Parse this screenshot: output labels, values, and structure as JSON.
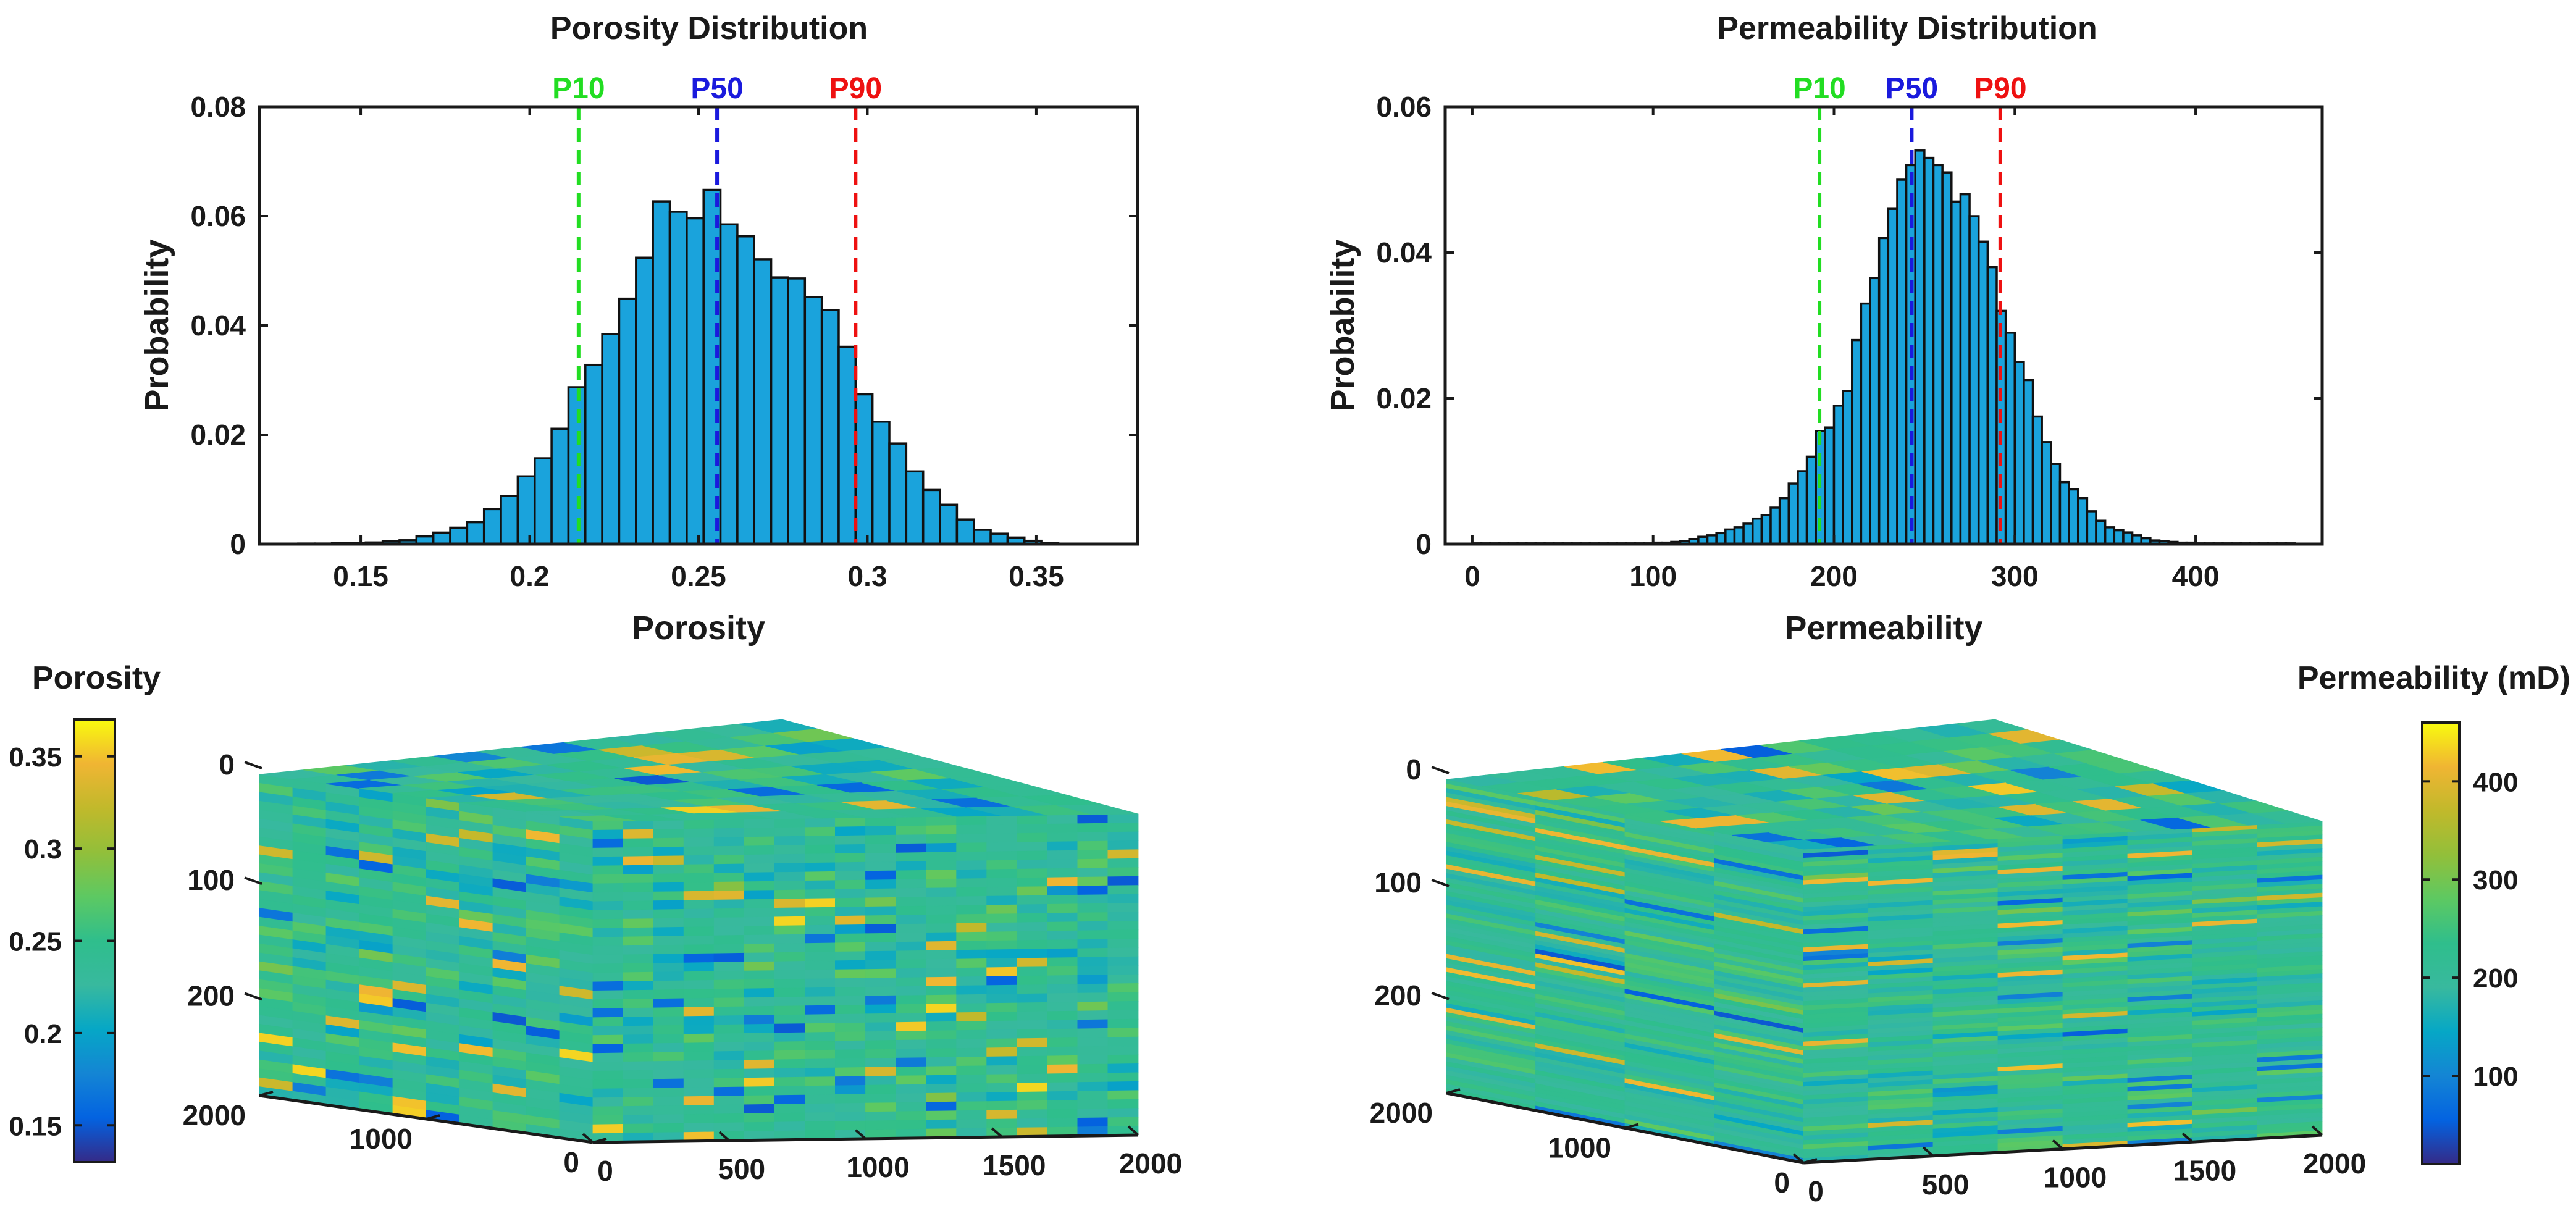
{
  "colors": {
    "bar_fill": "#1aa3dc",
    "bar_edge": "#111111",
    "p10": "#22dd22",
    "p50": "#1a1add",
    "p90": "#ee1111",
    "axis": "#1a1a1a"
  },
  "chart_data": [
    {
      "type": "bar",
      "title": "Porosity Distribution",
      "xlabel": "Porosity",
      "ylabel": "Probability",
      "xlim": [
        0.12,
        0.38
      ],
      "ylim": [
        0,
        0.08
      ],
      "xticks": [
        0.15,
        0.2,
        0.25,
        0.3,
        0.35
      ],
      "xtick_labels": [
        "0.15",
        "0.2",
        "0.25",
        "0.3",
        "0.35"
      ],
      "yticks": [
        0,
        0.02,
        0.04,
        0.06,
        0.08
      ],
      "ytick_labels": [
        "0",
        "0.02",
        "0.04",
        "0.06",
        "0.08"
      ],
      "bin_start": 0.1315,
      "bin_width": 0.005,
      "values": [
        0.0001,
        0.0001,
        0.0002,
        0.0002,
        0.0003,
        0.0005,
        0.0007,
        0.0014,
        0.0021,
        0.003,
        0.004,
        0.0064,
        0.0088,
        0.0124,
        0.0157,
        0.0211,
        0.0287,
        0.0328,
        0.0384,
        0.0449,
        0.0524,
        0.0627,
        0.0608,
        0.0596,
        0.0648,
        0.0585,
        0.0563,
        0.0521,
        0.0488,
        0.0486,
        0.0452,
        0.0428,
        0.0361,
        0.0274,
        0.0224,
        0.0184,
        0.0133,
        0.0099,
        0.0072,
        0.0045,
        0.0026,
        0.0019,
        0.0012,
        0.0006,
        0.0002
      ],
      "markers": [
        {
          "label": "P10",
          "value": 0.2145,
          "color": "#22dd22"
        },
        {
          "label": "P50",
          "value": 0.2555,
          "color": "#1a1add"
        },
        {
          "label": "P90",
          "value": 0.2965,
          "color": "#ee1111"
        }
      ]
    },
    {
      "type": "bar",
      "title": "Permeability Distribution",
      "xlabel": "Permeability",
      "ylabel": "Probability",
      "xlim": [
        -15,
        470
      ],
      "ylim": [
        0,
        0.06
      ],
      "xticks": [
        0,
        100,
        200,
        300,
        400
      ],
      "xtick_labels": [
        "0",
        "100",
        "200",
        "300",
        "400"
      ],
      "yticks": [
        0,
        0.02,
        0.04,
        0.06
      ],
      "ytick_labels": [
        "0",
        "0.02",
        "0.04",
        "0.06"
      ],
      "bin_start": 0,
      "bin_width": 5,
      "values": [
        0.0001,
        0.0001,
        0.0001,
        0.0001,
        0.0001,
        0.0001,
        0.0001,
        0.0001,
        0.0001,
        0.0001,
        0.0001,
        0.0001,
        0.0001,
        0.0001,
        0.0001,
        0.0001,
        0.0001,
        0.0001,
        0.0001,
        0.0001,
        0.0002,
        0.0002,
        0.0003,
        0.0004,
        0.0007,
        0.001,
        0.0012,
        0.0015,
        0.002,
        0.0023,
        0.0028,
        0.0035,
        0.004,
        0.005,
        0.0063,
        0.0083,
        0.01,
        0.012,
        0.0155,
        0.016,
        0.019,
        0.021,
        0.028,
        0.033,
        0.0365,
        0.042,
        0.046,
        0.05,
        0.052,
        0.054,
        0.053,
        0.052,
        0.051,
        0.047,
        0.048,
        0.045,
        0.0415,
        0.038,
        0.032,
        0.029,
        0.025,
        0.0225,
        0.0175,
        0.014,
        0.011,
        0.0085,
        0.0075,
        0.0063,
        0.0045,
        0.0032,
        0.0023,
        0.0019,
        0.0016,
        0.0012,
        0.0008,
        0.0005,
        0.0004,
        0.0003,
        0.0002,
        0.0002,
        0.0001,
        0.0001,
        0.0001,
        0.0001,
        0.0001,
        0.0001,
        0.0001,
        0.0001,
        0.0001,
        0.0001,
        0.0001
      ],
      "markers": [
        {
          "label": "P10",
          "value": 192,
          "color": "#22dd22"
        },
        {
          "label": "P50",
          "value": 243,
          "color": "#1a1add"
        },
        {
          "label": "P90",
          "value": 292,
          "color": "#ee1111"
        }
      ]
    },
    {
      "type": "heatmap",
      "subtype": "3d-block",
      "colorbar_label": "Porosity",
      "colorbar_ticks": [
        "0.15",
        "0.2",
        "0.25",
        "0.3",
        "0.35"
      ],
      "colorbar_tick_values": [
        0.15,
        0.2,
        0.25,
        0.3,
        0.35
      ],
      "color_range": [
        0.13,
        0.37
      ],
      "depth_ticks": [
        "0",
        "100",
        "200"
      ],
      "x_ticks": [
        "0",
        "500",
        "1000",
        "1500",
        "2000"
      ],
      "y_ticks": [
        "2000",
        "1000",
        "0"
      ]
    },
    {
      "type": "heatmap",
      "subtype": "3d-block",
      "colorbar_label": "Permeability (mD)",
      "colorbar_ticks": [
        "100",
        "200",
        "300",
        "400"
      ],
      "colorbar_tick_values": [
        100,
        200,
        300,
        400
      ],
      "color_range": [
        10,
        460
      ],
      "depth_ticks": [
        "0",
        "100",
        "200"
      ],
      "x_ticks": [
        "0",
        "500",
        "1000",
        "1500",
        "2000"
      ],
      "y_ticks": [
        "2000",
        "1000",
        "0"
      ]
    }
  ]
}
